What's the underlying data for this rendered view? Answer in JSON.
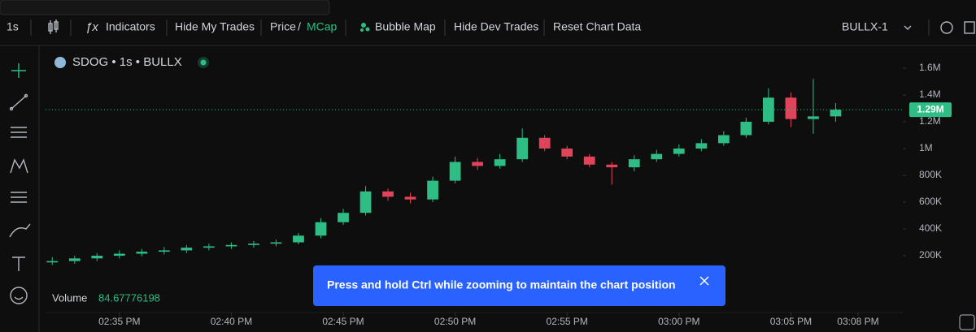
{
  "toolbar": {
    "interval": "1s",
    "indicators": "Indicators",
    "hide_my_trades": "Hide My Trades",
    "price": "Price",
    "separator": "/",
    "mcap": "MCap",
    "bubble_map": "Bubble Map",
    "hide_dev_trades": "Hide Dev Trades",
    "reset_chart_data": "Reset Chart Data",
    "exchange": "BULLX-1"
  },
  "chart_data": {
    "type": "candlestick",
    "title": "SDOG • 1s • BULLX",
    "x": [
      32,
      33,
      34,
      35,
      36,
      37,
      38,
      39,
      40,
      41,
      42,
      43,
      44,
      45,
      46,
      47,
      48,
      49,
      50,
      51,
      52,
      53,
      54,
      55,
      56,
      57,
      58,
      59,
      60,
      61,
      62,
      63,
      64,
      65,
      66,
      67
    ],
    "open": [
      150000,
      160000,
      180000,
      200000,
      215000,
      230000,
      240000,
      260000,
      270000,
      280000,
      290000,
      300000,
      350000,
      450000,
      520000,
      680000,
      640000,
      620000,
      760000,
      900000,
      870000,
      920000,
      1080000,
      1000000,
      940000,
      880000,
      860000,
      920000,
      960000,
      1000000,
      1040000,
      1100000,
      1200000,
      1380000,
      1220000,
      1240000
    ],
    "high": [
      190000,
      200000,
      220000,
      240000,
      250000,
      265000,
      280000,
      290000,
      300000,
      310000,
      320000,
      370000,
      480000,
      550000,
      720000,
      700000,
      670000,
      790000,
      940000,
      930000,
      960000,
      1150000,
      1100000,
      1020000,
      960000,
      900000,
      950000,
      990000,
      1030000,
      1070000,
      1130000,
      1230000,
      1450000,
      1420000,
      1520000,
      1340000
    ],
    "low": [
      130000,
      140000,
      160000,
      180000,
      195000,
      210000,
      220000,
      240000,
      250000,
      260000,
      270000,
      285000,
      330000,
      430000,
      500000,
      610000,
      590000,
      600000,
      740000,
      840000,
      850000,
      900000,
      980000,
      920000,
      860000,
      730000,
      830000,
      900000,
      940000,
      980000,
      1020000,
      1080000,
      1180000,
      1160000,
      1110000,
      1200000
    ],
    "close": [
      160000,
      180000,
      200000,
      215000,
      230000,
      240000,
      260000,
      270000,
      280000,
      290000,
      300000,
      350000,
      450000,
      520000,
      680000,
      640000,
      620000,
      760000,
      900000,
      870000,
      920000,
      1080000,
      1000000,
      940000,
      880000,
      860000,
      920000,
      960000,
      1000000,
      1040000,
      1100000,
      1200000,
      1380000,
      1220000,
      1240000,
      1290000
    ],
    "up_color": "#2ebd85",
    "down_color": "#e0445a",
    "xlim": [
      31.7,
      70
    ],
    "xticks": [
      {
        "value": 35,
        "label": "02:35 PM"
      },
      {
        "value": 40,
        "label": "02:40 PM"
      },
      {
        "value": 45,
        "label": "02:45 PM"
      },
      {
        "value": 50,
        "label": "02:50 PM"
      },
      {
        "value": 55,
        "label": "02:55 PM"
      },
      {
        "value": 60,
        "label": "03:00 PM"
      },
      {
        "value": 65,
        "label": "03:05 PM"
      },
      {
        "value": 68,
        "label": "03:08 PM"
      }
    ],
    "ylim": [
      -224000,
      1733000
    ],
    "yticks": [
      {
        "value": 200000,
        "label": "200K"
      },
      {
        "value": 400000,
        "label": "400K"
      },
      {
        "value": 600000,
        "label": "600K"
      },
      {
        "value": 800000,
        "label": "800K"
      },
      {
        "value": 1000000,
        "label": "1M"
      },
      {
        "value": 1200000,
        "label": "1.2M"
      },
      {
        "value": 1400000,
        "label": "1.4M"
      },
      {
        "value": 1600000,
        "label": "1.6M"
      }
    ],
    "last_price": {
      "value": 1290000,
      "label": "1.29M"
    },
    "volume_label": "Volume",
    "volume_value": 84.67776198
  },
  "toast": {
    "message": "Press and hold Ctrl while zooming to maintain the chart position"
  }
}
